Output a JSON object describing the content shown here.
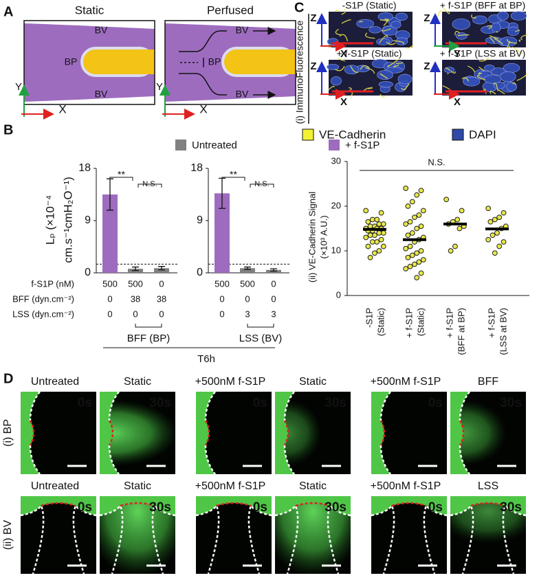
{
  "panel_a": {
    "label": "A",
    "static": {
      "title": "Static",
      "bv_top": "BV",
      "bp": "BP",
      "bv_bottom": "BV"
    },
    "perfused": {
      "title": "Perfused",
      "bv_top": "BV",
      "bp": "BP",
      "bv_bottom": "BV"
    },
    "axis_y": "Y",
    "axis_x": "X"
  },
  "panel_b": {
    "label": "B",
    "legend": [
      "Untreated",
      "+ f-S1P"
    ],
    "legend_colors": [
      "#808080",
      "#9d6cbf"
    ],
    "timepoint": "T6h",
    "row_labels": [
      "f-S1P (nM)",
      "BFF (dyn.cm⁻²)",
      "LSS (dyn.cm⁻²)"
    ]
  },
  "panel_c": {
    "label": "C",
    "section_label": "(i) ImmunoFluorescence",
    "images": [
      {
        "title": "-S1P (Static)",
        "axes": [
          "Z",
          "X"
        ]
      },
      {
        "title": "+ f-S1P (BFF at BP)",
        "axes": [
          "Z",
          "Y"
        ]
      },
      {
        "title": "+ f-S1P (Static)",
        "axes": [
          "Z",
          "X"
        ]
      },
      {
        "title": "+ f-S1P (LSS at BV)",
        "axes": [
          "Z",
          "X"
        ]
      }
    ],
    "legend": [
      "VE-Cadherin",
      "DAPI"
    ],
    "legend_colors": [
      "#f2f233",
      "#2f4aa8"
    ]
  },
  "panel_d": {
    "label": "D",
    "rows": [
      {
        "label": "(i) BP",
        "images": [
          {
            "title": "Untreated",
            "time": "0s"
          },
          {
            "title": "Static",
            "time": "30s"
          },
          {
            "title": "+500nM f-S1P",
            "time": "0s"
          },
          {
            "title": "Static",
            "time": "30s"
          },
          {
            "title": "+500nM f-S1P",
            "time": "0s"
          },
          {
            "title": "BFF",
            "time": "30s"
          }
        ]
      },
      {
        "label": "(ii) BV",
        "images": [
          {
            "title": "Untreated",
            "time": "0s"
          },
          {
            "title": "Static",
            "time": "30s"
          },
          {
            "title": "+500nM f-S1P",
            "time": "0s"
          },
          {
            "title": "Static",
            "time": "30s"
          },
          {
            "title": "+500nM f-S1P",
            "time": "0s"
          },
          {
            "title": "LSS",
            "time": "30s"
          }
        ]
      }
    ]
  },
  "chart_data": [
    {
      "type": "bar",
      "ylabel": [
        "Lₚ (×10⁻⁴",
        "cm.s⁻¹cmH₂O⁻¹)"
      ],
      "categories": [
        null,
        null,
        null
      ],
      "values": [
        13.5,
        0.7,
        0.8
      ],
      "errors": [
        2.7,
        0.3,
        0.3
      ],
      "colors": [
        "#9d6cbf",
        "#808080",
        "#808080"
      ],
      "ylim": [
        0,
        18
      ],
      "yticks": [
        0,
        9,
        18
      ],
      "reference_line": 1.5,
      "significance": [
        "**",
        "N.S."
      ],
      "group_label": "BFF (BP)",
      "conditions": [
        [
          500,
          500,
          0
        ],
        [
          0,
          38,
          38
        ],
        [
          0,
          0,
          0
        ]
      ]
    },
    {
      "type": "bar",
      "ylabel": null,
      "categories": [
        null,
        null,
        null
      ],
      "values": [
        13.7,
        0.8,
        0.5
      ],
      "errors": [
        2.6,
        0.2,
        0.2
      ],
      "colors": [
        "#9d6cbf",
        "#808080",
        "#808080"
      ],
      "ylim": [
        0,
        18
      ],
      "yticks": [
        0,
        9,
        18
      ],
      "reference_line": 1.5,
      "significance": [
        "**",
        "N.S."
      ],
      "group_label": "LSS (BV)",
      "conditions": [
        [
          500,
          500,
          0
        ],
        [
          0,
          0,
          0
        ],
        [
          0,
          3,
          3
        ]
      ]
    },
    {
      "type": "strip",
      "ylabel": [
        "(ii) VE-Cadherin Signal",
        "(×10³ A.U.)"
      ],
      "categories": [
        [
          "-S1P",
          "(Static)"
        ],
        [
          "+ f-S1P",
          "(Static)"
        ],
        [
          "+ f-S1P",
          "(BFF at BP)"
        ],
        [
          "+ f-S1P",
          "(LSS at BV)"
        ]
      ],
      "color": "#e8e84a",
      "ylim": [
        0,
        30
      ],
      "yticks": [
        0,
        10,
        20,
        30
      ],
      "annotation": "N.S.",
      "means": [
        14.8,
        12.5,
        16,
        14.9
      ],
      "points": [
        [
          19,
          18.5,
          17,
          17,
          16.5,
          16,
          16,
          15.5,
          15.5,
          15,
          15,
          15,
          14.5,
          14.5,
          14,
          14,
          13.5,
          13.5,
          13,
          12.5,
          12,
          12,
          11,
          11,
          10,
          9.5,
          8.5
        ],
        [
          24,
          23.5,
          22.5,
          21,
          20,
          19,
          18,
          17.5,
          16.5,
          16,
          15.5,
          15,
          14,
          13.5,
          13,
          12.5,
          12,
          11,
          10.5,
          10,
          9.5,
          9,
          8.5,
          8,
          7.5,
          7,
          6.5,
          6,
          5,
          4
        ],
        [
          21.5,
          19,
          17,
          16.5,
          16,
          15.5,
          15,
          11,
          10
        ],
        [
          19.5,
          18.5,
          17.5,
          17,
          16.5,
          15.5,
          15,
          14,
          13.5,
          12.5,
          12,
          11,
          9.5
        ]
      ]
    }
  ]
}
